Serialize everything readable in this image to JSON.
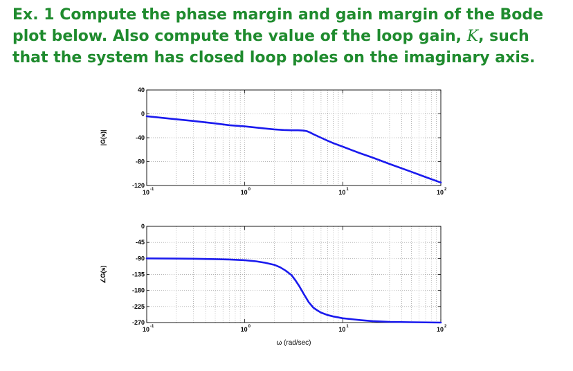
{
  "exercise": {
    "prefix": "Ex. 1",
    "text1": "Compute the phase margin and gain margin of the Bode plot below. Also compute the value of the loop gain,",
    "var": "K",
    "text2": ", such that the system has closed loop poles on the imaginary axis."
  },
  "chart_data": [
    {
      "type": "line",
      "title": "",
      "ylabel": "|G(s)|",
      "xlabel": "",
      "xscale": "log",
      "xlim": [
        0.1,
        100
      ],
      "ylim": [
        -120,
        40
      ],
      "yticks": [
        {
          "value": 40,
          "label": "40"
        },
        {
          "value": 0,
          "label": "0"
        },
        {
          "value": -40,
          "label": "-40"
        },
        {
          "value": -80,
          "label": "-80"
        },
        {
          "value": -120,
          "label": "-120"
        }
      ],
      "xticks": [
        {
          "value": 0.1,
          "base": "10",
          "exp": "-1"
        },
        {
          "value": 1,
          "base": "10",
          "exp": "0"
        },
        {
          "value": 10,
          "base": "10",
          "exp": "1"
        },
        {
          "value": 100,
          "base": "10",
          "exp": "2"
        }
      ],
      "grid": true,
      "line_color": "#1a1aee",
      "series": [
        {
          "x": [
            0.1,
            0.2,
            0.3,
            0.5,
            0.7,
            1,
            1.5,
            2,
            2.5,
            3,
            3.5,
            4,
            4.3,
            4.6,
            5,
            6,
            7,
            8,
            10,
            15,
            20,
            30,
            50,
            70,
            100
          ],
          "y": [
            -4,
            -9,
            -12,
            -16,
            -19,
            -21,
            -24,
            -26,
            -27,
            -27.5,
            -27.5,
            -28,
            -29,
            -31,
            -34,
            -40,
            -45,
            -49,
            -55,
            -66,
            -73,
            -84,
            -97,
            -106,
            -115
          ]
        }
      ]
    },
    {
      "type": "line",
      "title": "",
      "ylabel": "∠G(s)",
      "xlabel": "ω (rad/sec)",
      "xscale": "log",
      "xlim": [
        0.1,
        100
      ],
      "ylim": [
        -270,
        0
      ],
      "yticks": [
        {
          "value": 0,
          "label": "0"
        },
        {
          "value": -45,
          "label": "-45"
        },
        {
          "value": -90,
          "label": "-90"
        },
        {
          "value": -135,
          "label": "-135"
        },
        {
          "value": -180,
          "label": "-180"
        },
        {
          "value": -225,
          "label": "-225"
        },
        {
          "value": -270,
          "label": "-270"
        }
      ],
      "xticks": [
        {
          "value": 0.1,
          "base": "10",
          "exp": "-1"
        },
        {
          "value": 1,
          "base": "10",
          "exp": "0"
        },
        {
          "value": 10,
          "base": "10",
          "exp": "1"
        },
        {
          "value": 100,
          "base": "10",
          "exp": "2"
        }
      ],
      "grid": true,
      "line_color": "#1a1aee",
      "series": [
        {
          "x": [
            0.1,
            0.2,
            0.3,
            0.5,
            0.7,
            1,
            1.3,
            1.6,
            2,
            2.3,
            2.6,
            3,
            3.3,
            3.6,
            4,
            4.5,
            5,
            5.5,
            6,
            7,
            8,
            10,
            15,
            20,
            30,
            50,
            100
          ],
          "y": [
            -90,
            -90.5,
            -91,
            -92,
            -93,
            -95,
            -98,
            -102,
            -108,
            -115,
            -124,
            -137,
            -152,
            -168,
            -190,
            -213,
            -228,
            -236,
            -242,
            -249,
            -253,
            -258,
            -263,
            -266,
            -268,
            -269,
            -270
          ]
        }
      ]
    }
  ]
}
